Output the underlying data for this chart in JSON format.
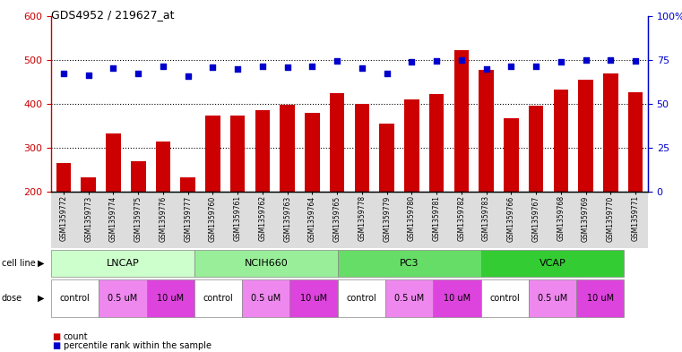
{
  "title": "GDS4952 / 219627_at",
  "samples": [
    "GSM1359772",
    "GSM1359773",
    "GSM1359774",
    "GSM1359775",
    "GSM1359776",
    "GSM1359777",
    "GSM1359760",
    "GSM1359761",
    "GSM1359762",
    "GSM1359763",
    "GSM1359764",
    "GSM1359765",
    "GSM1359778",
    "GSM1359779",
    "GSM1359780",
    "GSM1359781",
    "GSM1359782",
    "GSM1359783",
    "GSM1359766",
    "GSM1359767",
    "GSM1359768",
    "GSM1359769",
    "GSM1359770",
    "GSM1359771"
  ],
  "counts": [
    265,
    232,
    332,
    270,
    315,
    232,
    374,
    374,
    385,
    397,
    380,
    424,
    400,
    355,
    410,
    422,
    522,
    478,
    368,
    395,
    432,
    455,
    470,
    426
  ],
  "percentiles": [
    470,
    465,
    482,
    470,
    485,
    462,
    483,
    480,
    485,
    483,
    485,
    498,
    482,
    470,
    495,
    498,
    500,
    480,
    485,
    485,
    495,
    500,
    500,
    498
  ],
  "cell_lines": [
    {
      "name": "LNCAP",
      "start": 0,
      "end": 6,
      "color": "#ccffcc"
    },
    {
      "name": "NCIH660",
      "start": 6,
      "end": 12,
      "color": "#99ee99"
    },
    {
      "name": "PC3",
      "start": 12,
      "end": 18,
      "color": "#66dd66"
    },
    {
      "name": "VCAP",
      "start": 18,
      "end": 24,
      "color": "#33cc33"
    }
  ],
  "doses": [
    {
      "label": "control",
      "start": 0,
      "end": 2,
      "color": "#ffffff"
    },
    {
      "label": "0.5 uM",
      "start": 2,
      "end": 4,
      "color": "#ee88ee"
    },
    {
      "label": "10 uM",
      "start": 4,
      "end": 6,
      "color": "#dd44dd"
    },
    {
      "label": "control",
      "start": 6,
      "end": 8,
      "color": "#ffffff"
    },
    {
      "label": "0.5 uM",
      "start": 8,
      "end": 10,
      "color": "#ee88ee"
    },
    {
      "label": "10 uM",
      "start": 10,
      "end": 12,
      "color": "#dd44dd"
    },
    {
      "label": "control",
      "start": 12,
      "end": 14,
      "color": "#ffffff"
    },
    {
      "label": "0.5 uM",
      "start": 14,
      "end": 16,
      "color": "#ee88ee"
    },
    {
      "label": "10 uM",
      "start": 16,
      "end": 18,
      "color": "#dd44dd"
    },
    {
      "label": "control",
      "start": 18,
      "end": 20,
      "color": "#ffffff"
    },
    {
      "label": "0.5 uM",
      "start": 20,
      "end": 22,
      "color": "#ee88ee"
    },
    {
      "label": "10 uM",
      "start": 22,
      "end": 24,
      "color": "#dd44dd"
    }
  ],
  "ylim_left": [
    200,
    600
  ],
  "ylim_right": [
    0,
    100
  ],
  "yticks_left": [
    200,
    300,
    400,
    500,
    600
  ],
  "yticks_right": [
    0,
    25,
    50,
    75,
    100
  ],
  "ytick_right_labels": [
    "0",
    "25",
    "50",
    "75",
    "100%"
  ],
  "bar_color": "#cc0000",
  "dot_color": "#0000cc",
  "bg_color": "#ffffff"
}
